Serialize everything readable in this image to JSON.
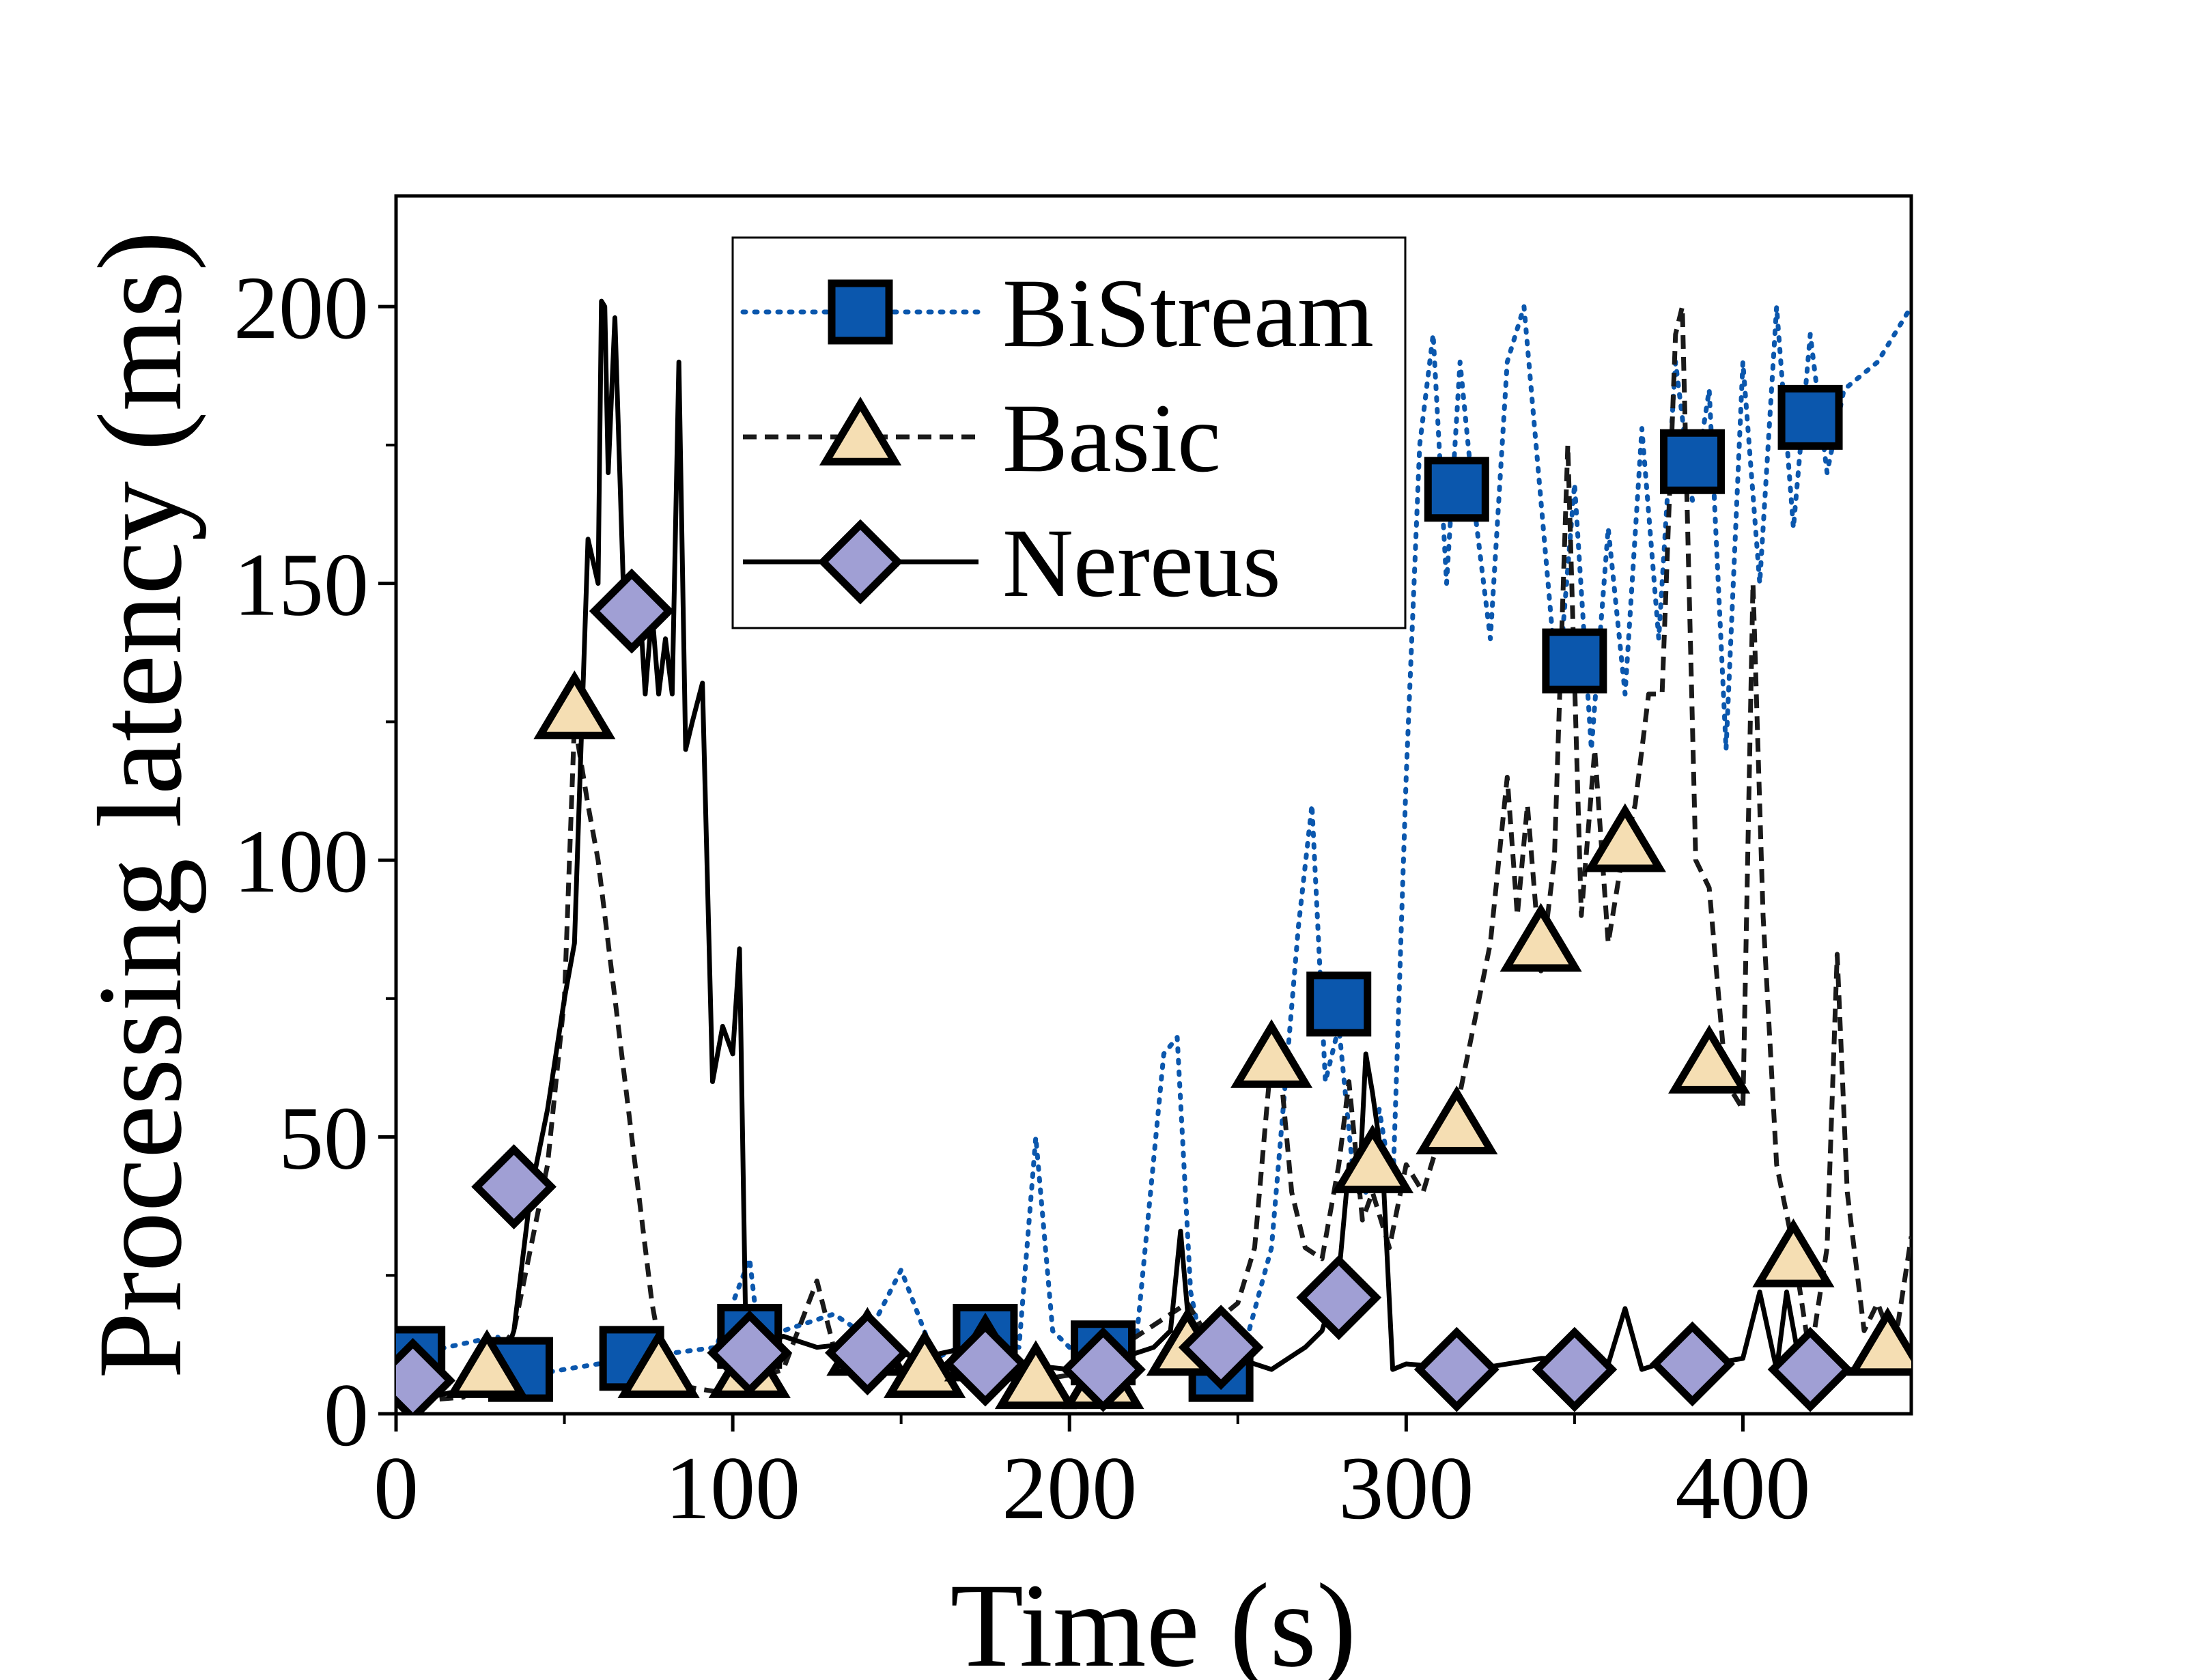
{
  "chart_data": {
    "type": "line",
    "title": "",
    "xlabel": "Time (s)",
    "ylabel": "Processing latency (ms)",
    "xlim": [
      0,
      450
    ],
    "ylim": [
      0,
      220
    ],
    "xticks": [
      0,
      100,
      200,
      300,
      400
    ],
    "yticks": [
      0,
      50,
      100,
      150,
      200
    ],
    "grid": false,
    "legend_position": "top-center",
    "series": [
      {
        "name": "BiStream",
        "line_style": "dotted",
        "color": "#0b57ad",
        "marker": "square",
        "marker_fill": "#0b57ad",
        "x": [
          0,
          15,
          30,
          40,
          60,
          70,
          95,
          105,
          108,
          115,
          130,
          140,
          150,
          160,
          175,
          185,
          190,
          195,
          200,
          210,
          220,
          228,
          232,
          236,
          240,
          245,
          252,
          260,
          268,
          272,
          276,
          280,
          284,
          288,
          292,
          296,
          300,
          304,
          308,
          312,
          316,
          320,
          325,
          330,
          335,
          340,
          345,
          350,
          355,
          360,
          365,
          370,
          375,
          380,
          385,
          390,
          395,
          400,
          405,
          410,
          415,
          420,
          425,
          430,
          440,
          450
        ],
        "y": [
          10,
          12,
          14,
          7,
          9,
          10,
          12,
          28,
          12,
          15,
          18,
          14,
          26,
          10,
          14,
          12,
          50,
          15,
          12,
          10,
          14,
          65,
          68,
          22,
          10,
          8,
          12,
          30,
          88,
          110,
          60,
          70,
          45,
          40,
          55,
          40,
          115,
          175,
          195,
          150,
          190,
          165,
          140,
          190,
          200,
          165,
          130,
          168,
          120,
          160,
          130,
          178,
          140,
          190,
          165,
          185,
          120,
          190,
          150,
          200,
          160,
          195,
          170,
          185,
          190,
          200
        ],
        "marker_x": [
          5,
          37,
          70,
          105,
          175,
          210,
          245,
          280,
          315,
          350,
          385,
          420
        ],
        "marker_y": [
          10,
          8,
          10,
          14,
          14,
          11,
          8,
          74,
          167,
          136,
          172,
          180
        ]
      },
      {
        "name": "Basic",
        "line_style": "dashed",
        "color": "#1a1a1a",
        "marker": "triangle",
        "marker_fill": "#f5deb3",
        "x": [
          0,
          20,
          35,
          45,
          50,
          53,
          57,
          60,
          63,
          66,
          70,
          73,
          76,
          79,
          85,
          95,
          105,
          115,
          125,
          130,
          140,
          150,
          160,
          170,
          180,
          190,
          200,
          210,
          220,
          230,
          235,
          240,
          250,
          255,
          260,
          263,
          266,
          270,
          275,
          280,
          283,
          287,
          290,
          295,
          300,
          305,
          310,
          315,
          320,
          325,
          330,
          333,
          336,
          340,
          344,
          348,
          352,
          356,
          360,
          364,
          368,
          372,
          376,
          380,
          382,
          384,
          386,
          390,
          395,
          400,
          403,
          406,
          410,
          415,
          420,
          425,
          428,
          431,
          436,
          440,
          445,
          450
        ],
        "y": [
          2,
          3,
          15,
          45,
          75,
          125,
          110,
          100,
          85,
          70,
          50,
          35,
          20,
          10,
          5,
          4,
          6,
          8,
          24,
          12,
          14,
          7,
          6,
          14,
          8,
          6,
          7,
          10,
          14,
          18,
          20,
          15,
          20,
          30,
          65,
          60,
          40,
          30,
          28,
          45,
          60,
          35,
          40,
          30,
          45,
          40,
          50,
          55,
          70,
          85,
          115,
          90,
          110,
          80,
          100,
          175,
          90,
          120,
          85,
          100,
          110,
          130,
          130,
          195,
          200,
          150,
          100,
          95,
          60,
          55,
          150,
          90,
          45,
          30,
          10,
          30,
          83,
          40,
          15,
          20,
          12,
          32
        ],
        "marker_x": [
          27,
          53,
          78,
          105,
          140,
          157,
          175,
          190,
          210,
          235,
          260,
          290,
          315,
          340,
          365,
          390,
          415,
          443
        ],
        "marker_y": [
          8,
          127,
          8,
          8,
          12,
          8,
          11,
          6,
          6,
          12,
          64,
          45,
          52,
          85,
          103,
          63,
          28,
          12
        ]
      },
      {
        "name": "Nereus",
        "line_style": "solid",
        "color": "#000000",
        "marker": "diamond",
        "marker_fill": "#a09fd4",
        "x": [
          0,
          10,
          25,
          30,
          35,
          40,
          45,
          50,
          53,
          57,
          60,
          61,
          62,
          63,
          65,
          68,
          70,
          72,
          74,
          76,
          78,
          80,
          82,
          84,
          86,
          88,
          91,
          94,
          97,
          100,
          102,
          104,
          108,
          115,
          125,
          140,
          155,
          170,
          185,
          200,
          215,
          225,
          230,
          233,
          236,
          240,
          250,
          260,
          270,
          275,
          280,
          283,
          286,
          288,
          290,
          293,
          296,
          300,
          320,
          340,
          350,
          360,
          365,
          370,
          380,
          390,
          400,
          405,
          410,
          413,
          416,
          420,
          430,
          450
        ],
        "y": [
          5,
          3,
          5,
          6,
          15,
          40,
          55,
          75,
          85,
          158,
          150,
          201,
          200,
          170,
          198,
          140,
          140,
          150,
          130,
          145,
          130,
          140,
          130,
          190,
          120,
          125,
          132,
          60,
          70,
          65,
          84,
          10,
          12,
          14,
          12,
          13,
          10,
          12,
          9,
          8,
          10,
          12,
          15,
          33,
          12,
          11,
          10,
          8,
          12,
          15,
          25,
          45,
          40,
          65,
          58,
          45,
          8,
          9,
          8,
          10,
          10,
          9,
          19,
          8,
          10,
          9,
          10,
          22,
          8,
          22,
          12,
          9,
          8,
          8
        ],
        "marker_x": [
          5,
          35,
          70,
          105,
          140,
          175,
          210,
          245,
          280,
          315,
          350,
          385,
          420
        ],
        "marker_y": [
          6,
          41,
          145,
          11,
          11,
          9,
          8,
          12,
          21,
          8,
          8,
          9,
          8
        ]
      }
    ]
  }
}
